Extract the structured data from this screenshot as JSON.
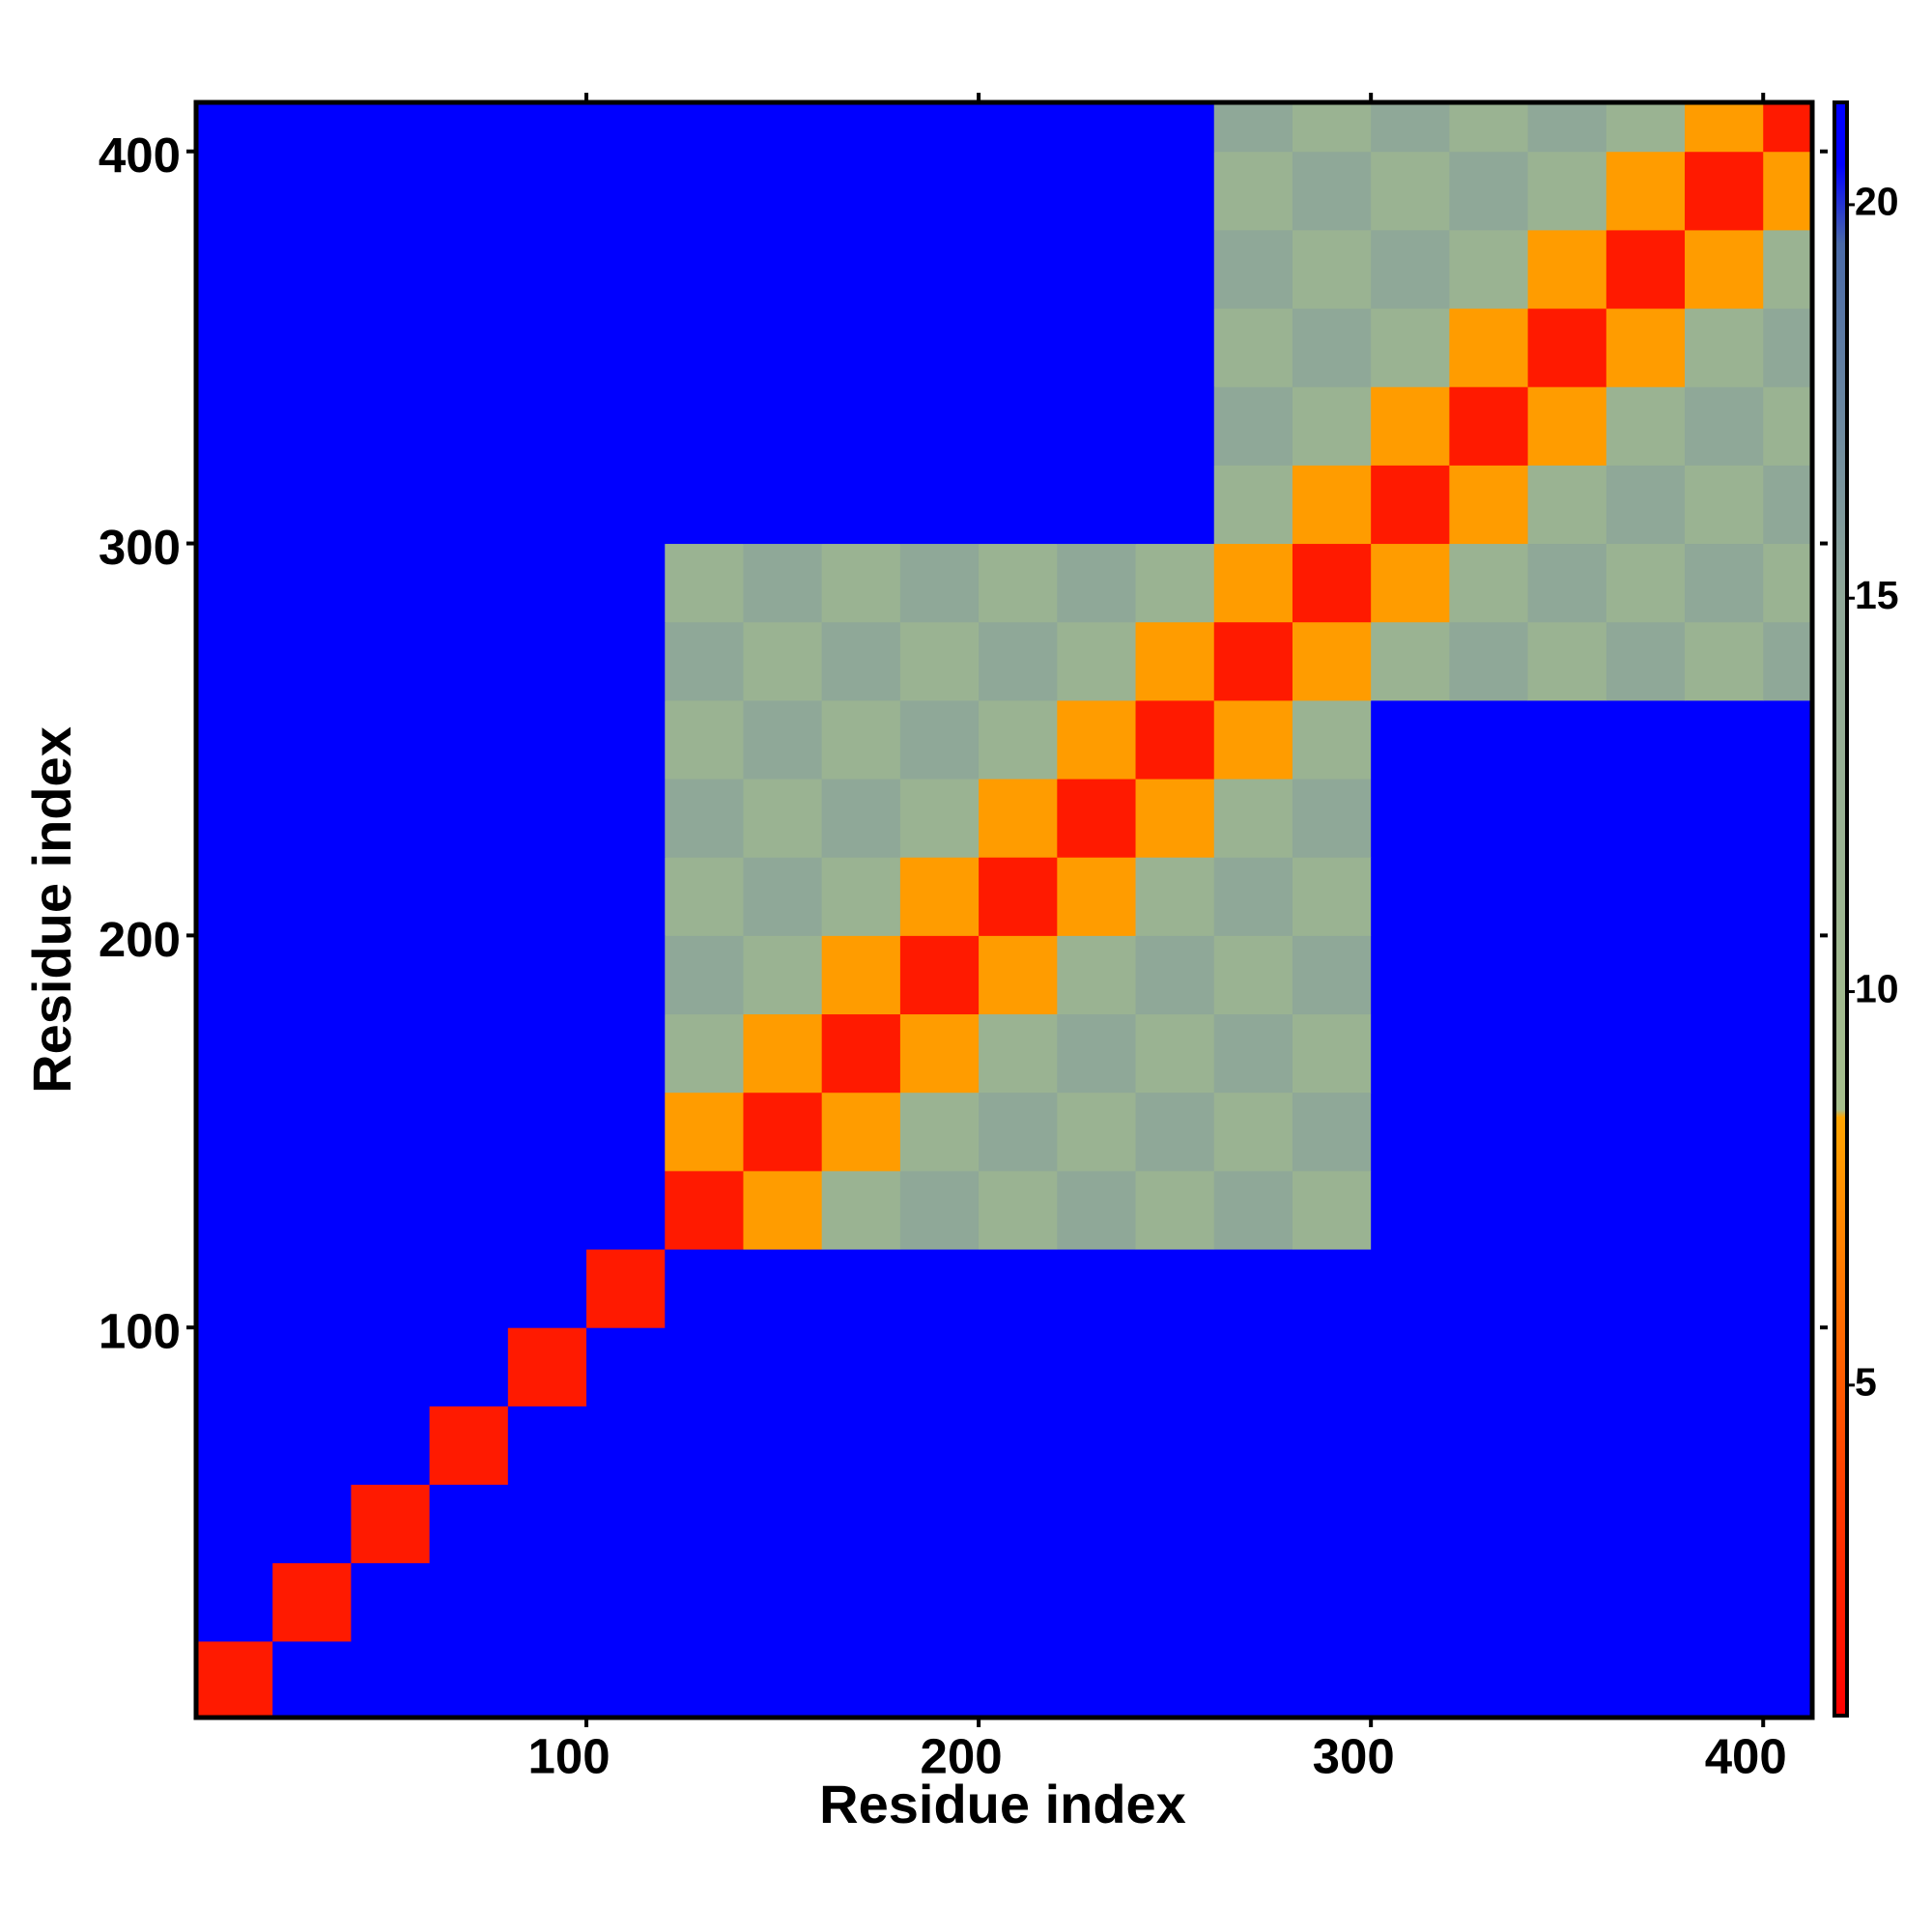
{
  "chart_data": {
    "type": "heatmap",
    "x_label": "Residue index",
    "y_label": "Residue index",
    "x": [
      10,
      30,
      50,
      70,
      90,
      110,
      130,
      150,
      170,
      190,
      210,
      230,
      250,
      270,
      290,
      310,
      330,
      350,
      370,
      390,
      410
    ],
    "y": [
      10,
      30,
      50,
      70,
      90,
      110,
      130,
      150,
      170,
      190,
      210,
      230,
      250,
      270,
      290,
      310,
      330,
      350,
      370,
      390,
      410
    ],
    "z": [
      [
        2,
        21,
        21,
        21,
        21,
        21,
        21,
        21,
        21,
        21,
        21,
        21,
        21,
        21,
        21,
        21,
        21,
        21,
        21,
        21,
        21
      ],
      [
        21,
        2,
        21,
        21,
        21,
        21,
        21,
        21,
        21,
        21,
        21,
        21,
        21,
        21,
        21,
        21,
        21,
        21,
        21,
        21,
        21
      ],
      [
        21,
        21,
        2,
        21,
        21,
        21,
        21,
        21,
        21,
        21,
        21,
        21,
        21,
        21,
        21,
        21,
        21,
        21,
        21,
        21,
        21
      ],
      [
        21,
        21,
        21,
        2,
        21,
        21,
        21,
        21,
        21,
        21,
        21,
        21,
        21,
        21,
        21,
        21,
        21,
        21,
        21,
        21,
        21
      ],
      [
        21,
        21,
        21,
        21,
        2,
        21,
        21,
        21,
        21,
        21,
        21,
        21,
        21,
        21,
        21,
        21,
        21,
        21,
        21,
        21,
        21
      ],
      [
        21,
        21,
        21,
        21,
        21,
        2,
        21,
        21,
        21,
        21,
        21,
        21,
        21,
        21,
        21,
        21,
        21,
        21,
        21,
        21,
        21
      ],
      [
        21,
        21,
        21,
        21,
        21,
        21,
        2,
        8,
        12,
        15,
        12,
        15,
        12,
        15,
        12,
        21,
        21,
        21,
        21,
        21,
        21
      ],
      [
        21,
        21,
        21,
        21,
        21,
        21,
        8,
        2,
        8,
        12,
        15,
        12,
        15,
        12,
        15,
        21,
        21,
        21,
        21,
        21,
        21
      ],
      [
        21,
        21,
        21,
        21,
        21,
        21,
        12,
        8,
        2,
        8,
        12,
        15,
        12,
        15,
        12,
        21,
        21,
        21,
        21,
        21,
        21
      ],
      [
        21,
        21,
        21,
        21,
        21,
        21,
        15,
        12,
        8,
        2,
        8,
        12,
        15,
        12,
        15,
        21,
        21,
        21,
        21,
        21,
        21
      ],
      [
        21,
        21,
        21,
        21,
        21,
        21,
        12,
        15,
        12,
        8,
        2,
        8,
        12,
        15,
        12,
        21,
        21,
        21,
        21,
        21,
        21
      ],
      [
        21,
        21,
        21,
        21,
        21,
        21,
        15,
        12,
        15,
        12,
        8,
        2,
        8,
        12,
        15,
        21,
        21,
        21,
        21,
        21,
        21
      ],
      [
        21,
        21,
        21,
        21,
        21,
        21,
        12,
        15,
        12,
        15,
        12,
        8,
        2,
        8,
        12,
        21,
        21,
        21,
        21,
        21,
        21
      ],
      [
        21,
        21,
        21,
        21,
        21,
        21,
        15,
        12,
        15,
        12,
        15,
        12,
        8,
        2,
        8,
        12,
        15,
        12,
        15,
        12,
        15
      ],
      [
        21,
        21,
        21,
        21,
        21,
        21,
        12,
        15,
        12,
        15,
        12,
        15,
        12,
        8,
        2,
        8,
        12,
        15,
        12,
        15,
        12
      ],
      [
        21,
        21,
        21,
        21,
        21,
        21,
        21,
        21,
        21,
        21,
        21,
        21,
        21,
        12,
        8,
        2,
        8,
        12,
        15,
        12,
        15
      ],
      [
        21,
        21,
        21,
        21,
        21,
        21,
        21,
        21,
        21,
        21,
        21,
        21,
        21,
        15,
        12,
        8,
        2,
        8,
        12,
        15,
        12
      ],
      [
        21,
        21,
        21,
        21,
        21,
        21,
        21,
        21,
        21,
        21,
        21,
        21,
        21,
        12,
        15,
        12,
        8,
        2,
        8,
        12,
        15
      ],
      [
        21,
        21,
        21,
        21,
        21,
        21,
        21,
        21,
        21,
        21,
        21,
        21,
        21,
        15,
        12,
        15,
        12,
        8,
        2,
        8,
        12
      ],
      [
        21,
        21,
        21,
        21,
        21,
        21,
        21,
        21,
        21,
        21,
        21,
        21,
        21,
        12,
        15,
        12,
        15,
        12,
        8,
        2,
        8
      ],
      [
        21,
        21,
        21,
        21,
        21,
        21,
        21,
        21,
        21,
        21,
        21,
        21,
        21,
        15,
        12,
        15,
        12,
        15,
        12,
        8,
        2
      ]
    ],
    "cell_size": 20,
    "xlim": [
      0.5,
      412.5
    ],
    "ylim": [
      0.5,
      412.5
    ],
    "xticks": [
      100,
      200,
      300,
      400
    ],
    "yticks": [
      100,
      200,
      300,
      400
    ],
    "colorscale": [
      [
        0.8,
        "#ff0000"
      ],
      [
        5,
        "#ff5a00"
      ],
      [
        8.4,
        "#ffa500"
      ],
      [
        8.5,
        "#a6bf8c"
      ],
      [
        15,
        "#8fa898"
      ],
      [
        19.5,
        "#4a6aa8"
      ],
      [
        20.5,
        "#0000ff"
      ],
      [
        21.3,
        "#0000ff"
      ]
    ],
    "clim": [
      0.8,
      21.3
    ],
    "cticks": [
      5,
      10,
      15,
      20
    ]
  }
}
